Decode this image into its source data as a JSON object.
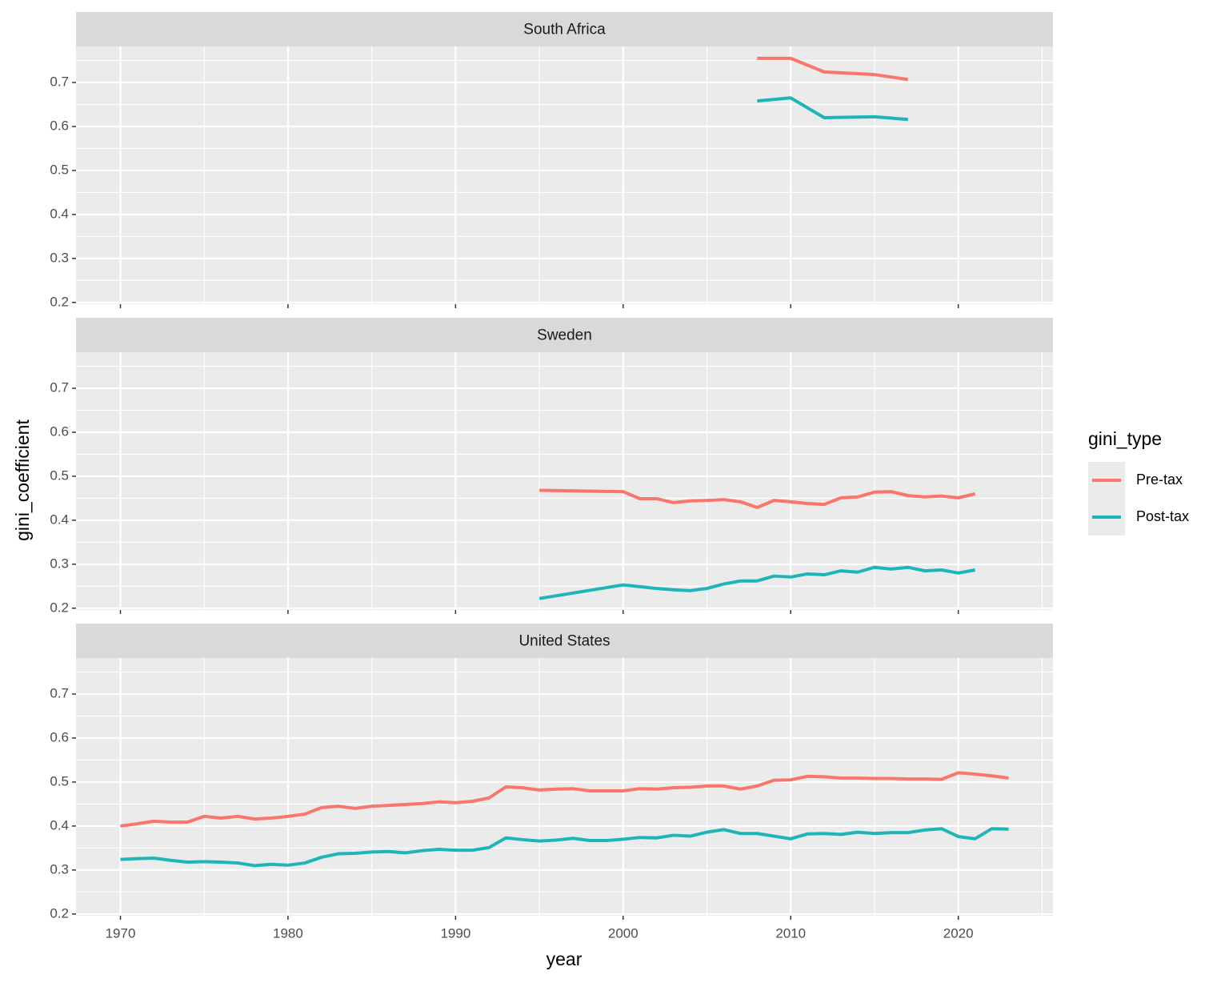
{
  "chart_data": {
    "type": "line",
    "xlabel": "year",
    "ylabel": "gini_coefficient",
    "legend_title": "gini_type",
    "legend_position": "right",
    "grid": true,
    "series": [
      {
        "name": "Pre-tax",
        "color": "#f8766d"
      },
      {
        "name": "Post-tax",
        "color": "#1fb5b8"
      }
    ],
    "xlim": [
      1967.35,
      2025.65
    ],
    "xticks": [
      1970,
      1980,
      1990,
      2000,
      2010,
      2020
    ],
    "ylim": [
      0.196,
      0.782
    ],
    "yticks": [
      0.2,
      0.3,
      0.4,
      0.5,
      0.6,
      0.7
    ],
    "facets": [
      {
        "title": "South Africa",
        "x": [
          2008,
          2010,
          2012,
          2015,
          2017
        ],
        "series": [
          {
            "values": [
              0.755,
              0.755,
              0.724,
              0.718,
              0.707
            ]
          },
          {
            "values": [
              0.658,
              0.665,
              0.62,
              0.622,
              0.616
            ]
          }
        ]
      },
      {
        "title": "Sweden",
        "x": [
          1995,
          2000,
          2001,
          2002,
          2003,
          2004,
          2005,
          2006,
          2007,
          2008,
          2009,
          2010,
          2011,
          2012,
          2013,
          2014,
          2015,
          2016,
          2017,
          2018,
          2019,
          2020,
          2021
        ],
        "series": [
          {
            "values": [
              0.468,
              0.465,
              0.449,
              0.449,
              0.44,
              0.444,
              0.445,
              0.447,
              0.442,
              0.429,
              0.445,
              0.442,
              0.438,
              0.436,
              0.451,
              0.453,
              0.464,
              0.465,
              0.456,
              0.453,
              0.455,
              0.451,
              0.46
            ]
          },
          {
            "values": [
              0.222,
              0.253,
              0.249,
              0.245,
              0.242,
              0.24,
              0.245,
              0.255,
              0.262,
              0.262,
              0.273,
              0.271,
              0.278,
              0.276,
              0.285,
              0.282,
              0.293,
              0.289,
              0.293,
              0.285,
              0.287,
              0.28,
              0.287
            ]
          }
        ]
      },
      {
        "title": "United States",
        "x": [
          1970,
          1971,
          1972,
          1973,
          1974,
          1975,
          1976,
          1977,
          1978,
          1979,
          1980,
          1981,
          1982,
          1983,
          1984,
          1985,
          1986,
          1987,
          1988,
          1989,
          1990,
          1991,
          1992,
          1993,
          1994,
          1995,
          1996,
          1997,
          1998,
          1999,
          2000,
          2001,
          2002,
          2003,
          2004,
          2005,
          2006,
          2007,
          2008,
          2009,
          2010,
          2011,
          2012,
          2013,
          2014,
          2015,
          2016,
          2017,
          2018,
          2019,
          2020,
          2021,
          2022,
          2023
        ],
        "series": [
          {
            "values": [
              0.4,
              0.405,
              0.411,
              0.409,
              0.409,
              0.422,
              0.418,
              0.422,
              0.416,
              0.418,
              0.422,
              0.427,
              0.442,
              0.445,
              0.44,
              0.445,
              0.447,
              0.449,
              0.451,
              0.455,
              0.453,
              0.456,
              0.464,
              0.489,
              0.487,
              0.482,
              0.484,
              0.485,
              0.48,
              0.48,
              0.48,
              0.485,
              0.484,
              0.487,
              0.488,
              0.491,
              0.491,
              0.484,
              0.491,
              0.504,
              0.505,
              0.513,
              0.512,
              0.509,
              0.509,
              0.508,
              0.508,
              0.507,
              0.507,
              0.506,
              0.521,
              0.518,
              0.514,
              0.509
            ]
          },
          {
            "values": [
              0.324,
              0.326,
              0.327,
              0.322,
              0.318,
              0.319,
              0.318,
              0.316,
              0.31,
              0.313,
              0.311,
              0.316,
              0.329,
              0.337,
              0.338,
              0.341,
              0.342,
              0.339,
              0.344,
              0.347,
              0.345,
              0.345,
              0.351,
              0.373,
              0.369,
              0.366,
              0.368,
              0.372,
              0.367,
              0.367,
              0.37,
              0.374,
              0.373,
              0.379,
              0.377,
              0.386,
              0.392,
              0.383,
              0.383,
              0.377,
              0.371,
              0.382,
              0.383,
              0.381,
              0.386,
              0.383,
              0.385,
              0.385,
              0.391,
              0.394,
              0.376,
              0.371,
              0.394,
              0.393
            ]
          }
        ]
      }
    ]
  }
}
